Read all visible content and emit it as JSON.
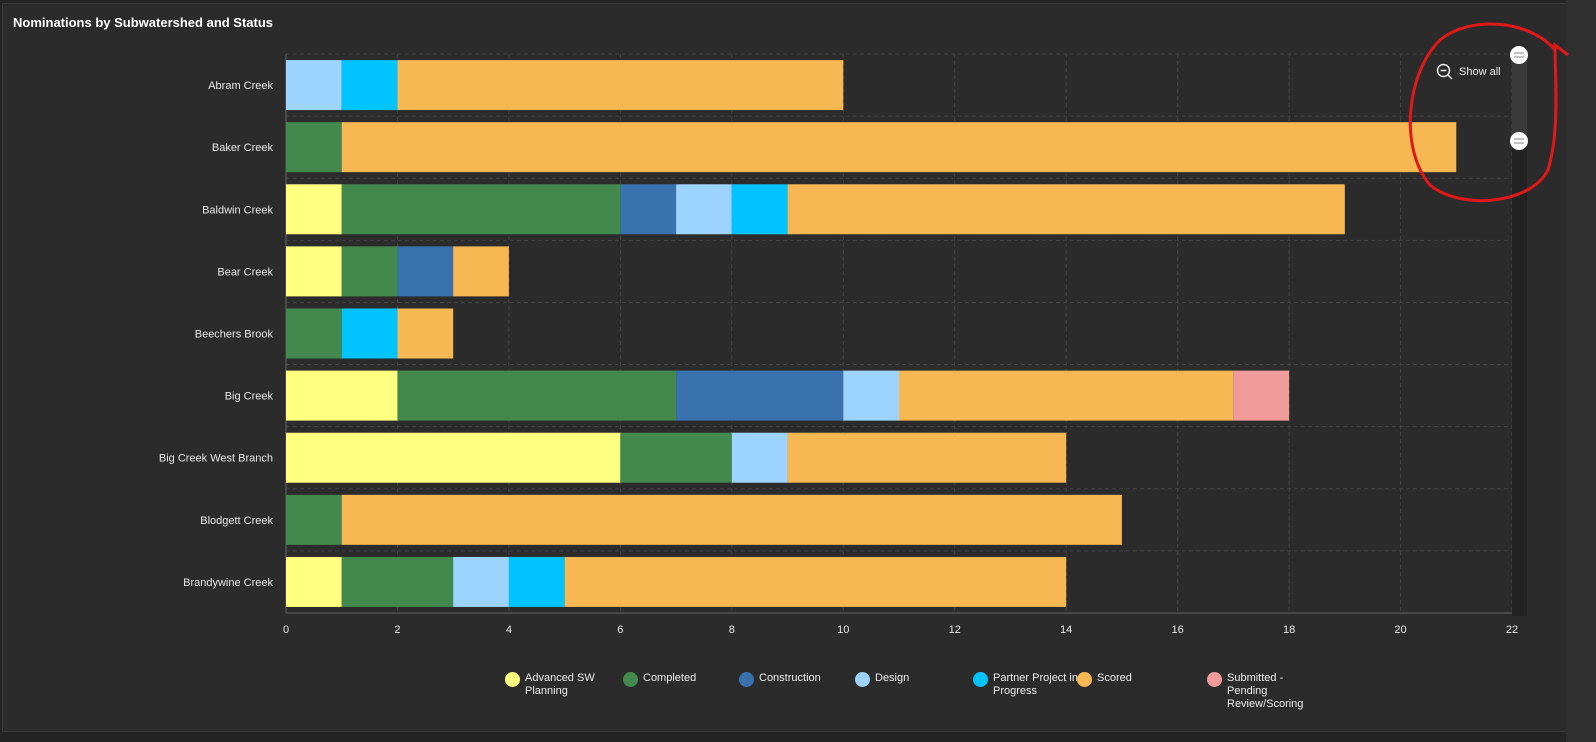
{
  "panel": {
    "title": "Nominations by Subwatershed and Status"
  },
  "zoom_control": {
    "label": "Show all",
    "icon": "zoom-out-icon"
  },
  "chart_data": {
    "type": "bar",
    "orientation": "horizontal",
    "stacked": true,
    "title": "Nominations by Subwatershed and Status",
    "categories": [
      "Abram Creek",
      "Baker Creek",
      "Baldwin Creek",
      "Bear Creek",
      "Beechers Brook",
      "Big Creek",
      "Big Creek West Branch",
      "Blodgett Creek",
      "Brandywine Creek"
    ],
    "xlim": [
      0,
      22
    ],
    "xticks": [
      "0",
      "2",
      "4",
      "6",
      "8",
      "10",
      "12",
      "14",
      "16",
      "18",
      "20",
      "22"
    ],
    "grid": true,
    "legend_position": "bottom",
    "series": [
      {
        "name": "Advanced SW Planning",
        "color": "#ffff80",
        "values": [
          0,
          0,
          1,
          1,
          0,
          2,
          6,
          0,
          1
        ]
      },
      {
        "name": "Completed",
        "color": "#43894e",
        "values": [
          0,
          1,
          5,
          1,
          1,
          5,
          2,
          1,
          2
        ]
      },
      {
        "name": "Construction",
        "color": "#3a72b0",
        "values": [
          0,
          0,
          1,
          1,
          0,
          3,
          0,
          0,
          0
        ]
      },
      {
        "name": "Design",
        "color": "#9dd3ff",
        "values": [
          1,
          0,
          1,
          0,
          0,
          1,
          1,
          0,
          1
        ]
      },
      {
        "name": "Partner Project in Progress",
        "color": "#00c3ff",
        "values": [
          1,
          0,
          1,
          0,
          1,
          0,
          0,
          0,
          1
        ]
      },
      {
        "name": "Scored",
        "color": "#f7b752",
        "values": [
          8,
          20,
          10,
          1,
          1,
          6,
          5,
          14,
          9
        ]
      },
      {
        "name": "Submitted - Pending Review/Scoring",
        "color": "#f09a9a",
        "values": [
          0,
          0,
          0,
          0,
          0,
          1,
          0,
          0,
          0
        ]
      }
    ]
  }
}
